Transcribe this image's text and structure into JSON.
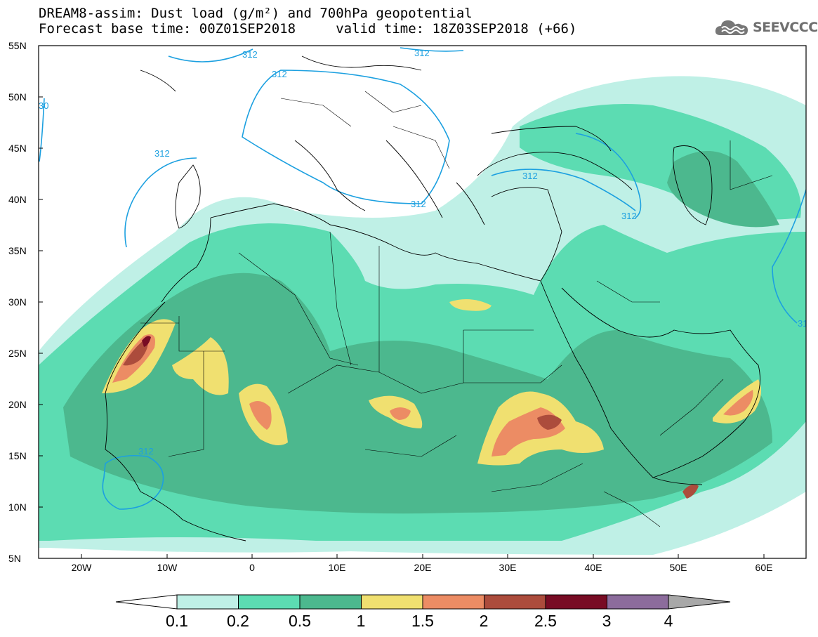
{
  "header": {
    "title_line1": "DREAM8-assim: Dust load (g/m²) and 700hPa geopotential",
    "title_line2": "Forecast base time: 00Z01SEP2018     valid time: 18Z03SEP2018 (+66)"
  },
  "logo": {
    "text": "SEEVCCC",
    "icon": "cloud-icon"
  },
  "map": {
    "lat_labels": [
      "55N",
      "50N",
      "45N",
      "40N",
      "35N",
      "30N",
      "25N",
      "20N",
      "15N",
      "10N",
      "5N"
    ],
    "lon_labels": [
      "20W",
      "10W",
      "0",
      "10E",
      "20E",
      "30E",
      "40E",
      "50E",
      "60E"
    ],
    "contour_label": "312",
    "edge_labels": [
      "30",
      "31"
    ]
  },
  "colorbar": {
    "labels": [
      "0.1",
      "0.2",
      "0.5",
      "1",
      "1.5",
      "2",
      "2.5",
      "3",
      "4"
    ],
    "colors": [
      "#bff0e6",
      "#5cdcb2",
      "#4cb88e",
      "#f0e070",
      "#ec8c64",
      "#ac4c3c",
      "#780c24",
      "#8c6c9c"
    ],
    "under_color": "#ffffff",
    "over_color": "#a8a8a8"
  },
  "contour_color": "#1ca0e0"
}
